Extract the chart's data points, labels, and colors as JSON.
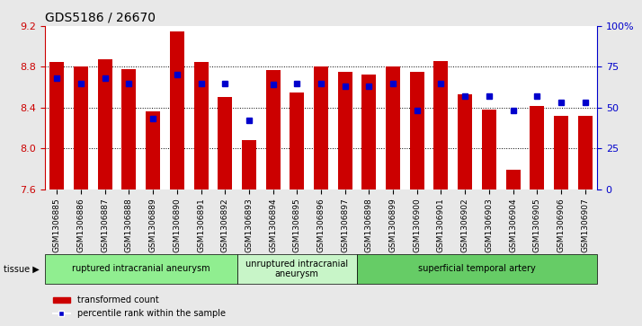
{
  "title": "GDS5186 / 26670",
  "samples": [
    "GSM1306885",
    "GSM1306886",
    "GSM1306887",
    "GSM1306888",
    "GSM1306889",
    "GSM1306890",
    "GSM1306891",
    "GSM1306892",
    "GSM1306893",
    "GSM1306894",
    "GSM1306895",
    "GSM1306896",
    "GSM1306897",
    "GSM1306898",
    "GSM1306899",
    "GSM1306900",
    "GSM1306901",
    "GSM1306902",
    "GSM1306903",
    "GSM1306904",
    "GSM1306905",
    "GSM1306906",
    "GSM1306907"
  ],
  "bar_values": [
    8.85,
    8.8,
    8.87,
    8.78,
    8.36,
    9.15,
    8.85,
    8.5,
    8.08,
    8.77,
    8.55,
    8.8,
    8.75,
    8.72,
    8.8,
    8.75,
    8.86,
    8.53,
    8.38,
    7.79,
    8.42,
    8.32,
    8.32
  ],
  "percentile_values": [
    68,
    65,
    68,
    65,
    43,
    70,
    65,
    65,
    42,
    64,
    65,
    65,
    63,
    63,
    65,
    48,
    65,
    57,
    57,
    48,
    57,
    53,
    53
  ],
  "ylim_left": [
    7.6,
    9.2
  ],
  "ylim_right": [
    0,
    100
  ],
  "bar_color": "#CC0000",
  "dot_color": "#0000CC",
  "bar_width": 0.6,
  "groups": [
    {
      "label": "ruptured intracranial aneurysm",
      "start": 0,
      "end": 8,
      "color": "#90EE90"
    },
    {
      "label": "unruptured intracranial\naneurysm",
      "start": 8,
      "end": 13,
      "color": "#c8f5c8"
    },
    {
      "label": "superficial temporal artery",
      "start": 13,
      "end": 23,
      "color": "#66CC66"
    }
  ],
  "tissue_label": "tissue",
  "legend_bar_label": "transformed count",
  "legend_dot_label": "percentile rank within the sample",
  "background_color": "#E8E8E8",
  "plot_bg_color": "#FFFFFF",
  "grid_color": "#000000",
  "ytick_color_left": "#CC0000",
  "ytick_color_right": "#0000CC"
}
